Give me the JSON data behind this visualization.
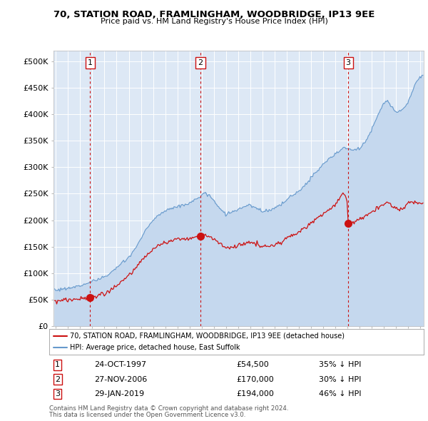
{
  "title": "70, STATION ROAD, FRAMLINGHAM, WOODBRIDGE, IP13 9EE",
  "subtitle": "Price paid vs. HM Land Registry's House Price Index (HPI)",
  "background_color": "#ffffff",
  "plot_bg_color": "#dde8f5",
  "grid_color": "#ffffff",
  "hpi_color": "#6699cc",
  "hpi_fill_color": "#c5d8ee",
  "price_color": "#cc1111",
  "vline_color": "#cc1111",
  "transactions": [
    {
      "num": 1,
      "date_num": 1997.81,
      "price": 54500,
      "label": "1",
      "date_str": "24-OCT-1997",
      "pct": "35% ↓ HPI"
    },
    {
      "num": 2,
      "date_num": 2006.9,
      "price": 170000,
      "label": "2",
      "date_str": "27-NOV-2006",
      "pct": "30% ↓ HPI"
    },
    {
      "num": 3,
      "date_num": 2019.08,
      "price": 194000,
      "label": "3",
      "date_str": "29-JAN-2019",
      "pct": "46% ↓ HPI"
    }
  ],
  "legend_price_label": "70, STATION ROAD, FRAMLINGHAM, WOODBRIDGE, IP13 9EE (detached house)",
  "legend_hpi_label": "HPI: Average price, detached house, East Suffolk",
  "footer1": "Contains HM Land Registry data © Crown copyright and database right 2024.",
  "footer2": "This data is licensed under the Open Government Licence v3.0.",
  "ylim": [
    0,
    520000
  ],
  "xlim_start": 1994.8,
  "xlim_end": 2025.3,
  "yticks": [
    0,
    50000,
    100000,
    150000,
    200000,
    250000,
    300000,
    350000,
    400000,
    450000,
    500000
  ],
  "ytick_labels": [
    "£0",
    "£50K",
    "£100K",
    "£150K",
    "£200K",
    "£250K",
    "£300K",
    "£350K",
    "£400K",
    "£450K",
    "£500K"
  ]
}
